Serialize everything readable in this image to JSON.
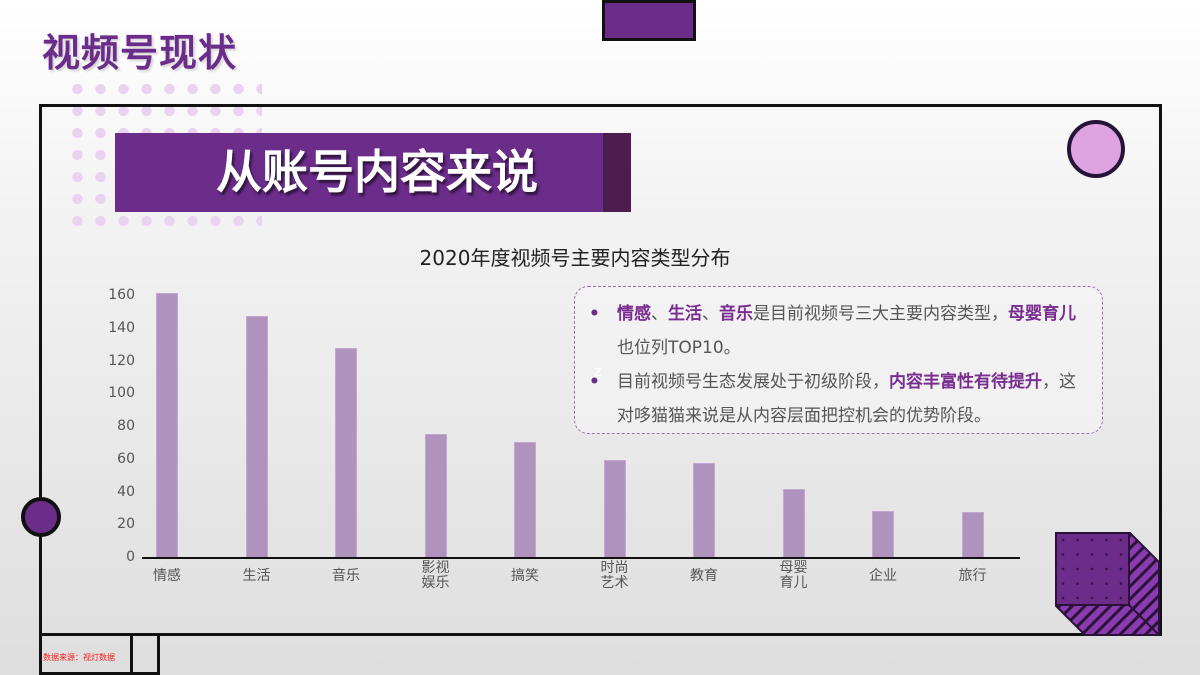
{
  "page": {
    "title": "视频号现状",
    "banner": "从账号内容来说"
  },
  "colors": {
    "brand_purple": "#6b2c8a",
    "dark_purple": "#4e1d4f",
    "bar": "#b092be",
    "pink": "#e0a3e2",
    "source_red": "#ff1a1a"
  },
  "chart_data": {
    "type": "bar",
    "title": "2020年度视频号主要内容类型分布",
    "xlabel": "",
    "ylabel": "",
    "ylim": [
      0,
      160
    ],
    "yticks": [
      0,
      20,
      40,
      60,
      80,
      100,
      120,
      140,
      160
    ],
    "grid": false,
    "legend": null,
    "categories": [
      "情感",
      "生活",
      "音乐",
      "影视娱乐",
      "搞笑",
      "时尚艺术",
      "教育",
      "母婴育儿",
      "企业",
      "旅行"
    ],
    "category_labels": [
      [
        "情感"
      ],
      [
        "生活"
      ],
      [
        "音乐"
      ],
      [
        "影视",
        "娱乐"
      ],
      [
        "搞笑"
      ],
      [
        "时尚",
        "艺术"
      ],
      [
        "教育"
      ],
      [
        "母婴",
        "育儿"
      ],
      [
        "企业"
      ],
      [
        "旅行"
      ]
    ],
    "values": [
      162,
      148,
      128,
      76,
      71,
      60,
      58,
      42,
      29,
      28
    ]
  },
  "notes": {
    "items": [
      {
        "bullet": "•",
        "segments": [
          {
            "text": "情感",
            "highlight": true
          },
          {
            "text": "、",
            "highlight": false
          },
          {
            "text": "生活",
            "highlight": true
          },
          {
            "text": "、",
            "highlight": false
          },
          {
            "text": "音乐",
            "highlight": true
          },
          {
            "text": "是目前视频号三大主要内容类型，",
            "highlight": false
          },
          {
            "text": "母婴育儿",
            "highlight": true
          },
          {
            "text": "也位列TOP10。",
            "highlight": false
          }
        ]
      },
      {
        "bullet": "•",
        "segments": [
          {
            "text": "目前视频号生态发展处于初级阶段，",
            "highlight": false
          },
          {
            "text": "内容丰富性有待提升",
            "highlight": true
          },
          {
            "text": "，这对哆猫猫来说是从内容层面把控机会的优势阶段。",
            "highlight": false
          }
        ]
      }
    ],
    "stray_mark": "z"
  },
  "source": {
    "text": "数据来源：视灯数据"
  }
}
